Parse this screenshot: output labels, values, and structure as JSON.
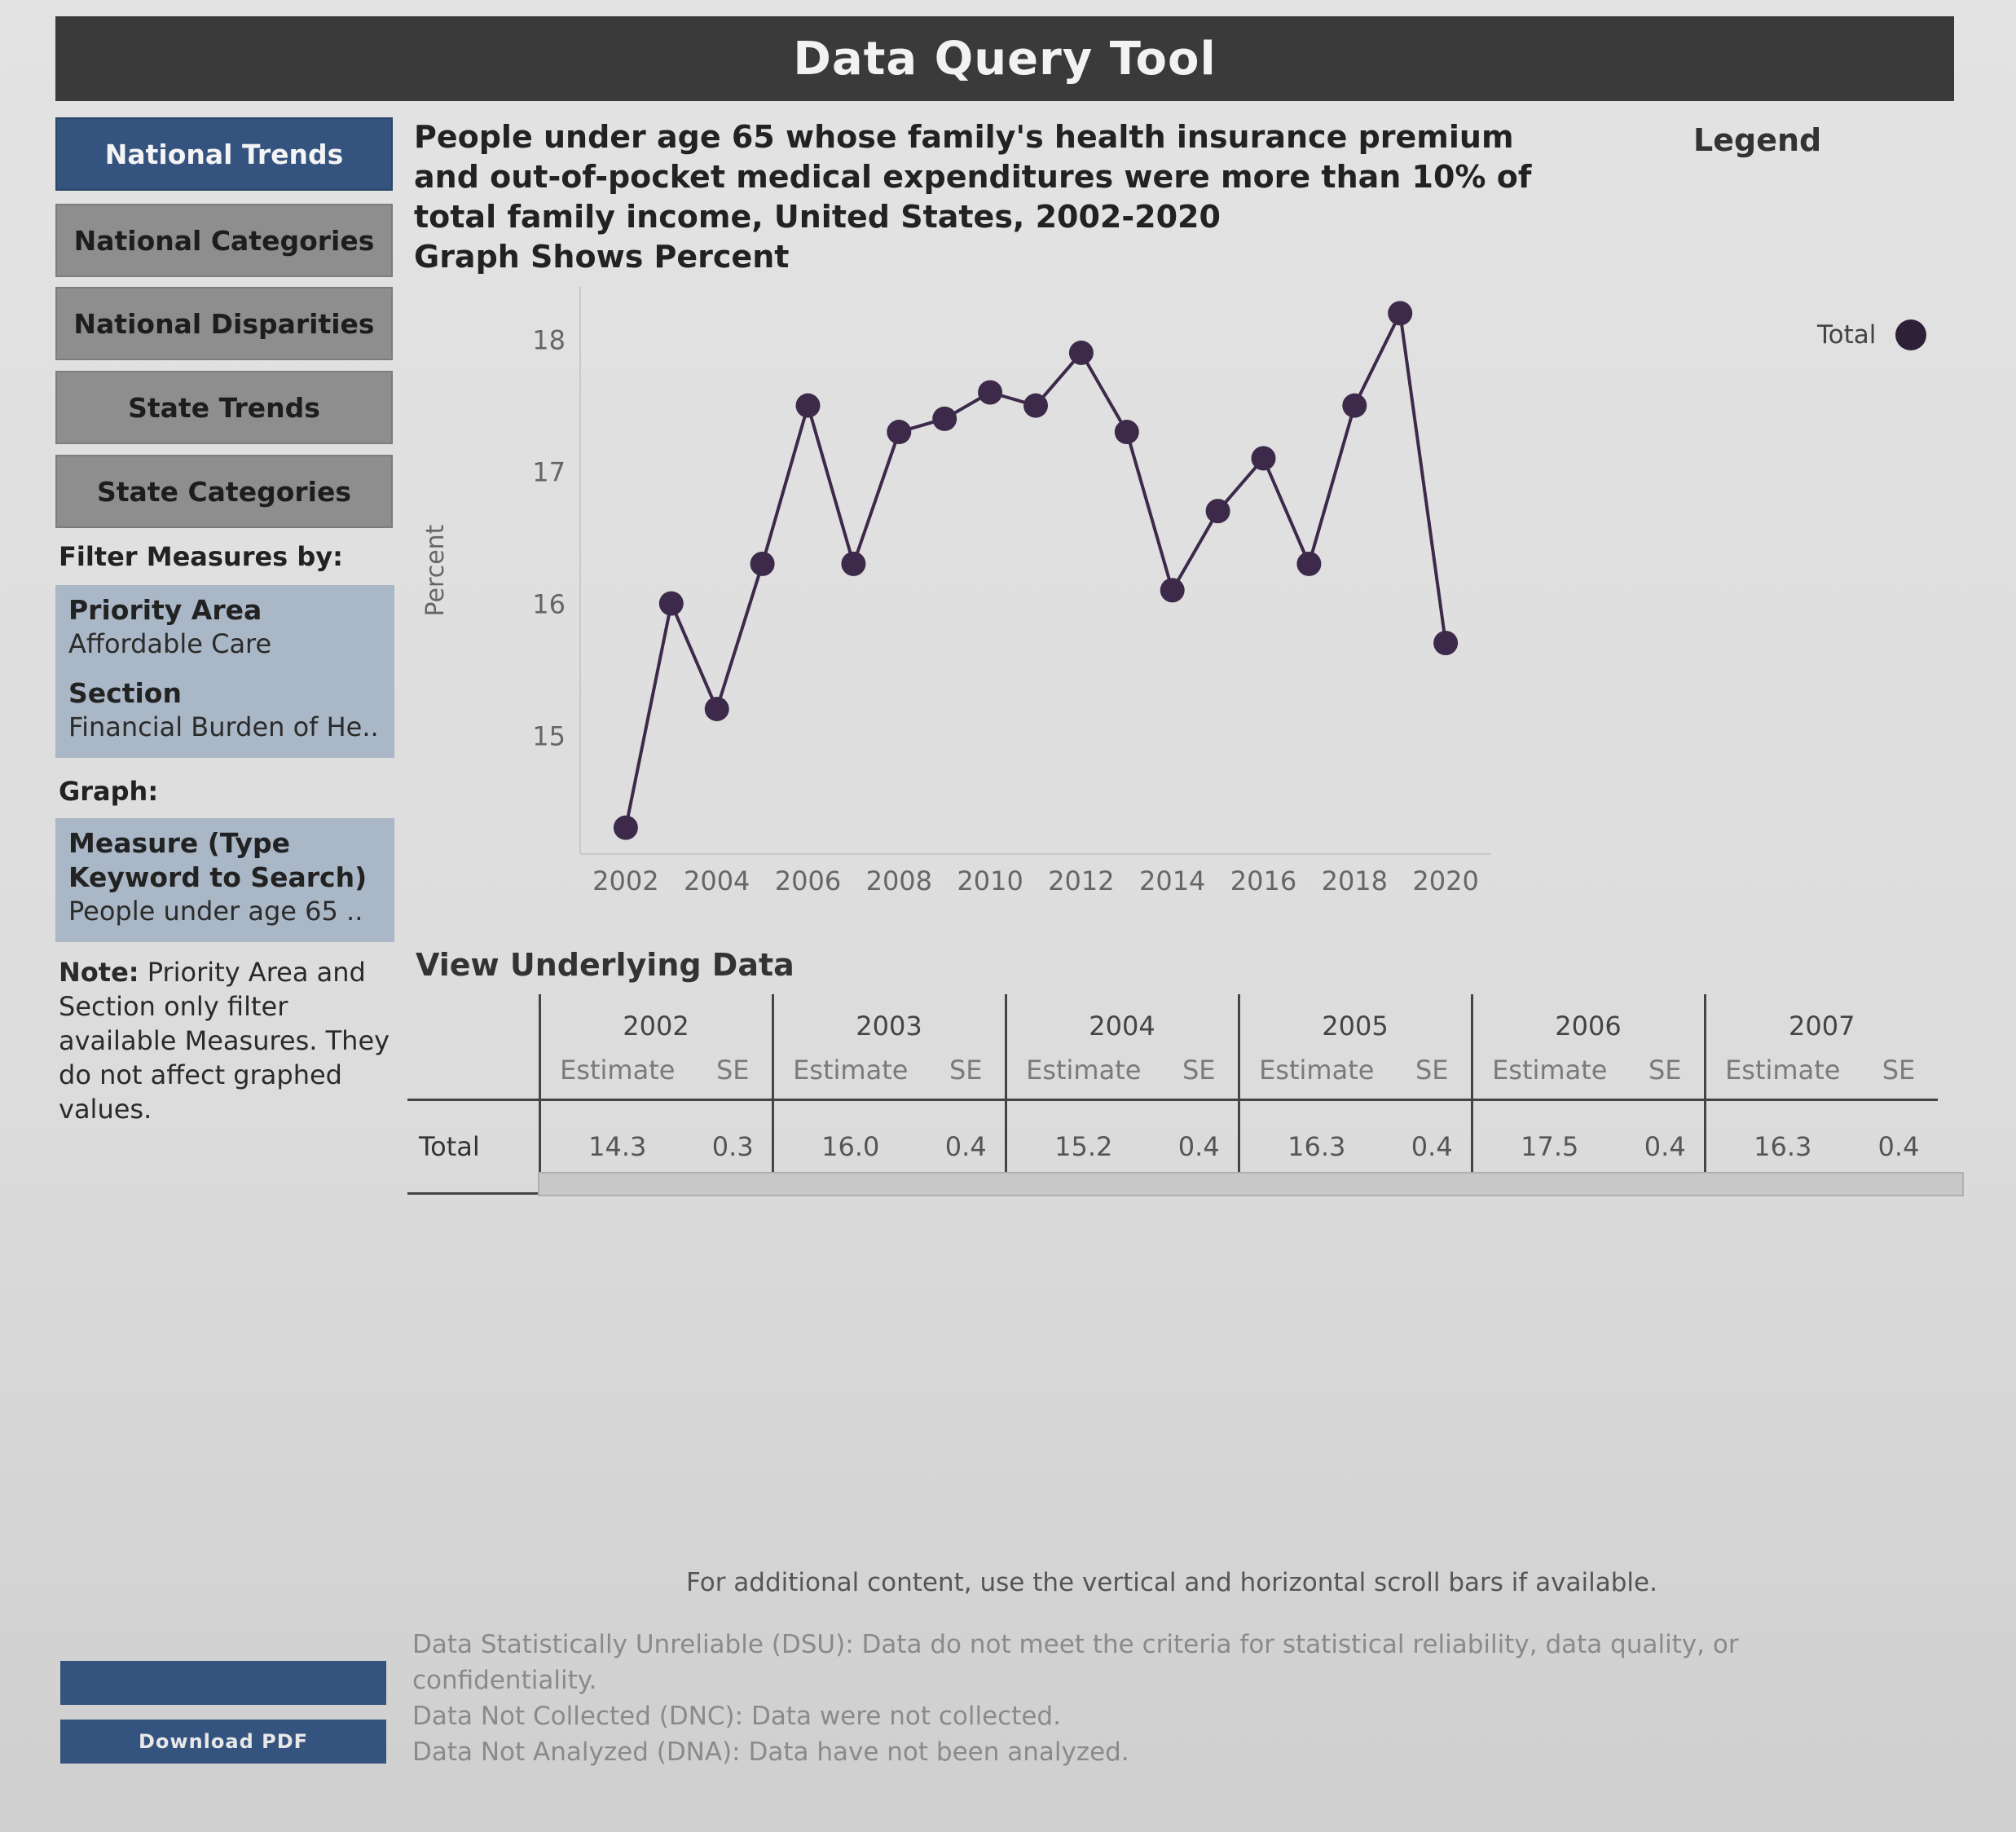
{
  "app": {
    "title": "Data Query Tool"
  },
  "nav": {
    "items": [
      {
        "label": "National Trends",
        "active": true
      },
      {
        "label": "National Categories",
        "active": false
      },
      {
        "label": "National Disparities",
        "active": false
      },
      {
        "label": "State Trends",
        "active": false
      },
      {
        "label": "State Categories",
        "active": false
      }
    ]
  },
  "filters": {
    "heading": "Filter Measures by:",
    "priority_area": {
      "label": "Priority Area",
      "value": "Affordable Care"
    },
    "section": {
      "label": "Section",
      "value": "Financial Burden of He.."
    }
  },
  "graph_control": {
    "heading": "Graph:",
    "measure": {
      "label_line1": "Measure (Type",
      "label_line2": "Keyword to Search)",
      "value": "People under age 65 .."
    }
  },
  "note": {
    "bold": "Note:",
    "text": " Priority Area and Section only filter available Measures. They do not affect graphed values."
  },
  "chart_header": {
    "line1": "People under age 65 whose family's health insurance premium",
    "line2": "and out-of-pocket medical expenditures were more than 10% of",
    "line3": "total family income, United States, 2002-2020",
    "line4": "Graph Shows Percent"
  },
  "legend": {
    "title": "Legend",
    "entry": "Total",
    "color": "#2f2038"
  },
  "chart_data": {
    "type": "line",
    "title": "",
    "xlabel": "",
    "ylabel": "Percent",
    "ylim": [
      14.1,
      18.4
    ],
    "yticks": [
      15,
      16,
      17,
      18
    ],
    "xticks": [
      2002,
      2004,
      2006,
      2008,
      2010,
      2012,
      2014,
      2016,
      2018,
      2020
    ],
    "x": [
      2002,
      2003,
      2004,
      2005,
      2006,
      2007,
      2008,
      2009,
      2010,
      2011,
      2012,
      2013,
      2014,
      2015,
      2016,
      2017,
      2018,
      2019,
      2020
    ],
    "series": [
      {
        "name": "Total",
        "color": "#3d2a4a",
        "values": [
          14.3,
          16.0,
          15.2,
          16.3,
          17.5,
          16.3,
          17.3,
          17.4,
          17.6,
          17.5,
          17.9,
          17.3,
          16.1,
          16.7,
          17.1,
          16.3,
          17.5,
          18.2,
          15.7
        ]
      }
    ],
    "grid": false,
    "legend": "top-right"
  },
  "table": {
    "heading": "View Underlying Data",
    "estimate_label": "Estimate",
    "se_label": "SE",
    "row_label": "Total",
    "columns": [
      {
        "year": "2002",
        "estimate": "14.3",
        "se": "0.3"
      },
      {
        "year": "2003",
        "estimate": "16.0",
        "se": "0.4"
      },
      {
        "year": "2004",
        "estimate": "15.2",
        "se": "0.4"
      },
      {
        "year": "2005",
        "estimate": "16.3",
        "se": "0.4"
      },
      {
        "year": "2006",
        "estimate": "17.5",
        "se": "0.4"
      },
      {
        "year": "2007",
        "estimate": "16.3",
        "se": "0.4"
      }
    ]
  },
  "footer": {
    "scroll_note": "For additional content, use the vertical and horizontal scroll bars if available.",
    "dsu": "Data Statistically Unreliable (DSU): Data do not meet the criteria for statistical reliability, data quality, or confidentiality.",
    "dnc": "Data Not Collected (DNC): Data were not collected.",
    "dna": "Data Not Analyzed (DNA): Data have not been analyzed.",
    "download_label": "Download PDF"
  }
}
